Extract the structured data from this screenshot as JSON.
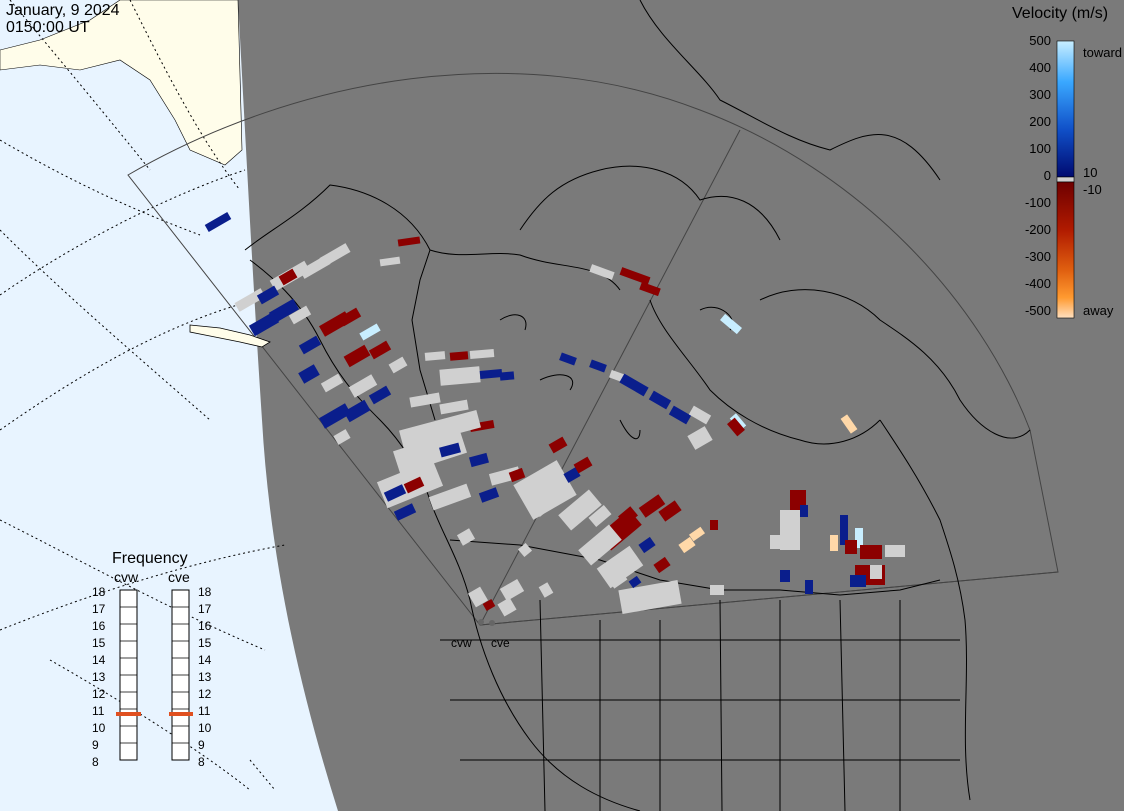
{
  "header": {
    "date": "January, 9 2024",
    "time": "0150:00 UT"
  },
  "colorbar": {
    "title": "Velocity (m/s)",
    "ticks": [
      "500",
      "400",
      "300",
      "200",
      "100",
      "0",
      "-100",
      "-200",
      "-300",
      "-400",
      "-500"
    ],
    "side_labels": {
      "toward": "toward",
      "ten": "10",
      "minus_ten": "-10",
      "away": "away"
    },
    "colors": {
      "toward_max": "#c8eeff",
      "toward_mid": "#1e90ff",
      "toward_low": "#0a1e8c",
      "away_low": "#8c0000",
      "away_mid": "#e06010",
      "away_max": "#ffd8a8",
      "ground_scatter": "#d0d0d0"
    }
  },
  "frequency": {
    "title": "Frequency",
    "radars": [
      {
        "name": "cvw",
        "value_mhz": 11
      },
      {
        "name": "cve",
        "value_mhz": 11
      }
    ],
    "ticks": [
      "18",
      "17",
      "16",
      "15",
      "14",
      "13",
      "12",
      "11",
      "10",
      "9",
      "8"
    ],
    "indicator_color": "#e05020"
  },
  "sites": [
    {
      "label": "cvw"
    },
    {
      "label": "cve"
    }
  ],
  "map_colors": {
    "land": "#7a7a7a",
    "ocean_day": "#e8f4ff",
    "land_day": "#fffdea"
  }
}
